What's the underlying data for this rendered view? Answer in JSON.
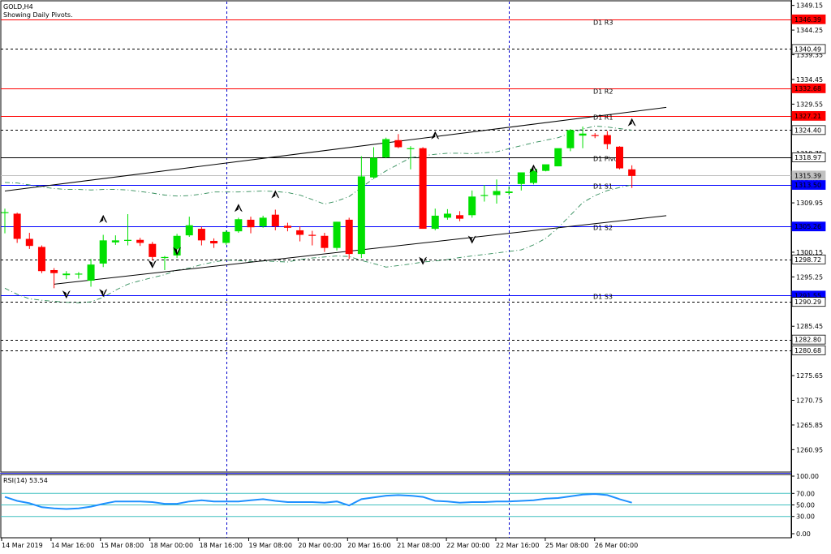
{
  "header": {
    "symbol": "GOLD,H4",
    "subtitle": "Showing Daily Pivots."
  },
  "rsi_panel": {
    "label": "RSI(14) 53.54"
  },
  "colors": {
    "bull": "#00e000",
    "bear": "#ff0000",
    "pivot_line": "#ff0000",
    "blue_line": "#0000ff",
    "rsi_line": "#1e90ff",
    "rsi_level": "#40c0c0",
    "band": "#2e8b57"
  },
  "chart_data": [
    {
      "type": "candlestick",
      "title": "",
      "ylim": [
        1256.5,
        1349.9
      ],
      "y_ticks": [
        1349.15,
        1344.25,
        1339.35,
        1334.45,
        1329.55,
        1324.65,
        1319.75,
        1314.85,
        1309.95,
        1305.05,
        1300.15,
        1295.25,
        1290.35,
        1285.45,
        1280.55,
        1275.65,
        1270.75,
        1265.85,
        1260.95
      ],
      "x_labels": [
        "14 Mar 2019",
        "14 Mar 16:00",
        "15 Mar 08:00",
        "18 Mar 00:00",
        "18 Mar 16:00",
        "19 Mar 08:00",
        "20 Mar 00:00",
        "20 Mar 16:00",
        "21 Mar 08:00",
        "22 Mar 00:00",
        "22 Mar 16:00",
        "25 Mar 08:00",
        "26 Mar 00:00"
      ],
      "level_lines": [
        {
          "value": 1346.39,
          "label": "D1 R3",
          "kind": "red"
        },
        {
          "value": 1340.49,
          "label": "",
          "kind": "dotted"
        },
        {
          "value": 1332.68,
          "label": "D1 R2",
          "kind": "red"
        },
        {
          "value": 1327.21,
          "label": "D1 R1",
          "kind": "red"
        },
        {
          "value": 1324.4,
          "label": "",
          "kind": "dotted"
        },
        {
          "value": 1318.97,
          "label": "D1 Pivot",
          "kind": "black"
        },
        {
          "value": 1315.39,
          "label": "",
          "kind": "gray"
        },
        {
          "value": 1313.5,
          "label": "D1 S1",
          "kind": "blue"
        },
        {
          "value": 1305.26,
          "label": "D1 S2",
          "kind": "blue"
        },
        {
          "value": 1298.72,
          "label": "",
          "kind": "dotted"
        },
        {
          "value": 1291.55,
          "label": "D1 S3",
          "kind": "blue"
        },
        {
          "value": 1290.29,
          "label": "",
          "kind": "dotted"
        },
        {
          "value": 1282.8,
          "label": "",
          "kind": "dotted"
        },
        {
          "value": 1280.68,
          "label": "",
          "kind": "dotted"
        }
      ],
      "candles": [
        {
          "o": 1308.0,
          "h": 1308.8,
          "l": 1303.9,
          "c": 1308.1
        },
        {
          "o": 1307.8,
          "h": 1308.0,
          "l": 1302.0,
          "c": 1302.8
        },
        {
          "o": 1302.8,
          "h": 1304.0,
          "l": 1300.8,
          "c": 1301.4
        },
        {
          "o": 1301.2,
          "h": 1301.5,
          "l": 1296.0,
          "c": 1296.4
        },
        {
          "o": 1296.6,
          "h": 1297.0,
          "l": 1293.0,
          "c": 1296.0
        },
        {
          "o": 1295.6,
          "h": 1296.4,
          "l": 1294.8,
          "c": 1295.9
        },
        {
          "o": 1295.8,
          "h": 1296.2,
          "l": 1294.9,
          "c": 1295.9
        },
        {
          "o": 1294.5,
          "h": 1298.8,
          "l": 1293.3,
          "c": 1297.7
        },
        {
          "o": 1297.9,
          "h": 1303.6,
          "l": 1297.2,
          "c": 1302.5
        },
        {
          "o": 1302.1,
          "h": 1303.5,
          "l": 1301.6,
          "c": 1302.5
        },
        {
          "o": 1302.4,
          "h": 1307.7,
          "l": 1301.5,
          "c": 1302.6
        },
        {
          "o": 1302.6,
          "h": 1303.0,
          "l": 1301.4,
          "c": 1302.0
        },
        {
          "o": 1301.8,
          "h": 1302.2,
          "l": 1298.5,
          "c": 1299.2
        },
        {
          "o": 1299.0,
          "h": 1299.4,
          "l": 1296.6,
          "c": 1299.2
        },
        {
          "o": 1299.5,
          "h": 1303.8,
          "l": 1299.0,
          "c": 1303.4
        },
        {
          "o": 1303.5,
          "h": 1307.2,
          "l": 1303.2,
          "c": 1305.5
        },
        {
          "o": 1304.8,
          "h": 1305.2,
          "l": 1301.5,
          "c": 1302.5
        },
        {
          "o": 1302.4,
          "h": 1302.9,
          "l": 1301.0,
          "c": 1301.9
        },
        {
          "o": 1302.0,
          "h": 1304.5,
          "l": 1301.6,
          "c": 1304.2
        },
        {
          "o": 1304.3,
          "h": 1307.0,
          "l": 1304.0,
          "c": 1306.7
        },
        {
          "o": 1306.6,
          "h": 1307.2,
          "l": 1303.9,
          "c": 1305.1
        },
        {
          "o": 1305.3,
          "h": 1307.4,
          "l": 1305.0,
          "c": 1307.0
        },
        {
          "o": 1307.6,
          "h": 1308.6,
          "l": 1304.5,
          "c": 1305.3
        },
        {
          "o": 1305.4,
          "h": 1306.0,
          "l": 1304.3,
          "c": 1305.0
        },
        {
          "o": 1304.5,
          "h": 1305.3,
          "l": 1302.3,
          "c": 1303.6
        },
        {
          "o": 1303.6,
          "h": 1304.4,
          "l": 1301.5,
          "c": 1303.5
        },
        {
          "o": 1303.4,
          "h": 1304.0,
          "l": 1300.2,
          "c": 1301.0
        },
        {
          "o": 1301.0,
          "h": 1306.2,
          "l": 1300.5,
          "c": 1306.2
        },
        {
          "o": 1306.6,
          "h": 1307.0,
          "l": 1298.8,
          "c": 1299.8
        },
        {
          "o": 1299.8,
          "h": 1319.2,
          "l": 1299.0,
          "c": 1315.2
        },
        {
          "o": 1315.0,
          "h": 1321.0,
          "l": 1314.7,
          "c": 1318.9
        },
        {
          "o": 1319.0,
          "h": 1322.9,
          "l": 1318.8,
          "c": 1322.6
        },
        {
          "o": 1322.4,
          "h": 1323.6,
          "l": 1320.8,
          "c": 1321.0
        },
        {
          "o": 1320.8,
          "h": 1321.2,
          "l": 1316.6,
          "c": 1320.8
        },
        {
          "o": 1320.8,
          "h": 1321.0,
          "l": 1304.8,
          "c": 1304.8
        },
        {
          "o": 1304.8,
          "h": 1308.8,
          "l": 1304.5,
          "c": 1307.4
        },
        {
          "o": 1307.0,
          "h": 1308.7,
          "l": 1306.6,
          "c": 1307.8
        },
        {
          "o": 1307.5,
          "h": 1308.3,
          "l": 1306.3,
          "c": 1306.8
        },
        {
          "o": 1307.5,
          "h": 1312.4,
          "l": 1307.0,
          "c": 1311.2
        },
        {
          "o": 1311.4,
          "h": 1313.5,
          "l": 1310.2,
          "c": 1311.5
        },
        {
          "o": 1311.5,
          "h": 1314.6,
          "l": 1309.8,
          "c": 1312.3
        },
        {
          "o": 1311.9,
          "h": 1313.2,
          "l": 1311.5,
          "c": 1312.2
        },
        {
          "o": 1313.7,
          "h": 1316.0,
          "l": 1312.4,
          "c": 1316.0
        },
        {
          "o": 1313.9,
          "h": 1316.8,
          "l": 1313.6,
          "c": 1316.7
        },
        {
          "o": 1316.3,
          "h": 1317.2,
          "l": 1316.2,
          "c": 1317.6
        },
        {
          "o": 1317.2,
          "h": 1320.0,
          "l": 1317.2,
          "c": 1320.8
        },
        {
          "o": 1320.8,
          "h": 1324.6,
          "l": 1320.2,
          "c": 1324.4
        },
        {
          "o": 1323.3,
          "h": 1325.1,
          "l": 1320.8,
          "c": 1323.7
        },
        {
          "o": 1323.4,
          "h": 1323.8,
          "l": 1322.8,
          "c": 1323.3
        },
        {
          "o": 1323.4,
          "h": 1324.2,
          "l": 1320.6,
          "c": 1321.6
        },
        {
          "o": 1321.1,
          "h": 1321.2,
          "l": 1316.6,
          "c": 1316.8
        },
        {
          "o": 1316.6,
          "h": 1317.4,
          "l": 1312.9,
          "c": 1315.3
        }
      ],
      "upper_band": [
        1314.0,
        1313.9,
        1313.5,
        1313.1,
        1312.8,
        1312.6,
        1312.6,
        1312.5,
        1312.6,
        1312.6,
        1312.5,
        1312.2,
        1311.9,
        1311.5,
        1311.3,
        1311.4,
        1311.7,
        1312.1,
        1312.1,
        1312.1,
        1312.2,
        1312.3,
        1312.2,
        1312.0,
        1311.5,
        1310.6,
        1309.7,
        1310.3,
        1311.2,
        1313.0,
        1314.8,
        1316.3,
        1317.6,
        1318.9,
        1319.3,
        1319.6,
        1319.8,
        1319.8,
        1319.7,
        1319.9,
        1320.1,
        1320.7,
        1321.3,
        1321.9,
        1322.4,
        1322.9,
        1323.8,
        1324.6,
        1325.2,
        1325.0,
        1324.7,
        1324.4
      ],
      "lower_band": [
        1293.0,
        1291.8,
        1290.9,
        1290.6,
        1290.4,
        1290.2,
        1290.1,
        1290.3,
        1291.2,
        1292.6,
        1293.8,
        1294.5,
        1295.1,
        1295.7,
        1296.6,
        1297.0,
        1297.7,
        1298.2,
        1298.6,
        1298.5,
        1298.3,
        1298.4,
        1298.3,
        1298.2,
        1298.7,
        1299.0,
        1299.2,
        1299.4,
        1299.3,
        1298.5,
        1297.9,
        1297.2,
        1297.5,
        1297.8,
        1298.2,
        1298.4,
        1298.7,
        1299.1,
        1299.4,
        1299.7,
        1300.0,
        1300.3,
        1300.6,
        1301.6,
        1302.9,
        1305.0,
        1307.5,
        1310.0,
        1311.4,
        1312.4,
        1313.0,
        1313.5
      ],
      "trendlines": [
        {
          "start": {
            "x": 0,
            "y": 1312.3
          },
          "end": {
            "x": 53.8,
            "y": 1328.9
          }
        },
        {
          "start": {
            "x": 4.0,
            "y": 1293.8
          },
          "end": {
            "x": 53.8,
            "y": 1307.4
          }
        }
      ],
      "fractals_up": [
        [
          8,
          1306.6
        ],
        [
          19,
          1308.8
        ],
        [
          22,
          1311.5
        ],
        [
          35,
          1323.2
        ],
        [
          43,
          1316.6
        ],
        [
          51,
          1325.8
        ]
      ],
      "fractals_down": [
        [
          5,
          1291.9
        ],
        [
          8,
          1292.2
        ],
        [
          12,
          1297.9
        ],
        [
          14,
          1300.5
        ],
        [
          34,
          1298.6
        ],
        [
          38,
          1302.8
        ]
      ],
      "vertical_markers": [
        18,
        41
      ],
      "last_price": 1315.39
    },
    {
      "type": "line",
      "title": "RSI(14) 53.54",
      "ylim": [
        0,
        100
      ],
      "y_ticks": [
        100.0,
        70.0,
        50.0,
        30.0,
        0.0
      ],
      "levels": [
        70,
        50,
        30
      ],
      "series": [
        {
          "name": "RSI(14)",
          "values": [
            64,
            57,
            53,
            46,
            44,
            43,
            44,
            47,
            52,
            56,
            56,
            56,
            55,
            52,
            52,
            56,
            58,
            56,
            56,
            56,
            58,
            60,
            57,
            55,
            55,
            55,
            54,
            56,
            49,
            60,
            63,
            66,
            67,
            66,
            64,
            57,
            56,
            54,
            55,
            55,
            56,
            56,
            57,
            58,
            61,
            62,
            65,
            68,
            69,
            67,
            60,
            54
          ]
        }
      ]
    }
  ]
}
